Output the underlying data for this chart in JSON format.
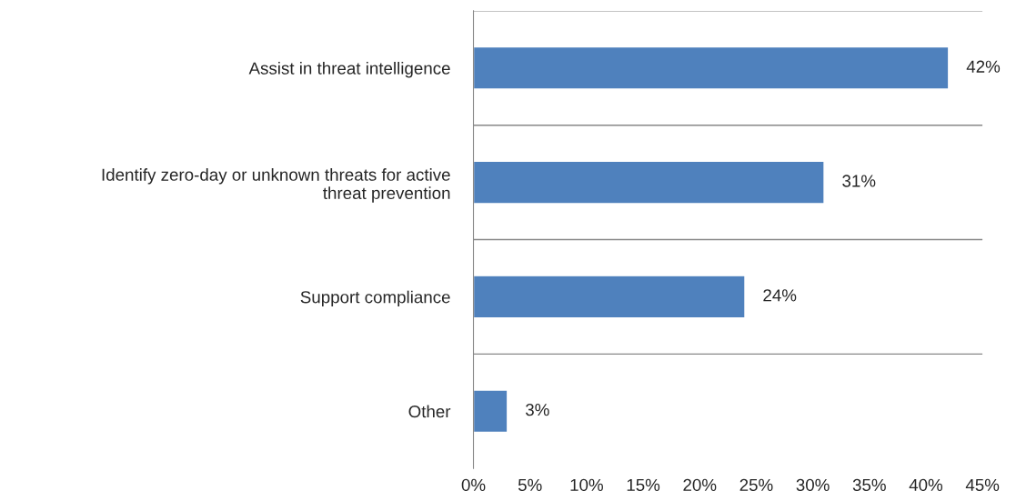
{
  "chart_data": {
    "type": "bar",
    "orientation": "horizontal",
    "categories": [
      "Assist in threat intelligence",
      "Identify zero-day or unknown threats for active\nthreat prevention",
      "Support compliance",
      "Other"
    ],
    "values": [
      42,
      31,
      24,
      3
    ],
    "value_labels": [
      "42%",
      "31%",
      "24%",
      "3%"
    ],
    "color": "#4f81bd",
    "xlim": [
      0,
      45
    ],
    "xticks": [
      {
        "value": 0,
        "label": "0%"
      },
      {
        "value": 5,
        "label": "5%"
      },
      {
        "value": 10,
        "label": "10%"
      },
      {
        "value": 15,
        "label": "15%"
      },
      {
        "value": 20,
        "label": "20%"
      },
      {
        "value": 25,
        "label": "25%"
      },
      {
        "value": 30,
        "label": "30%"
      },
      {
        "value": 35,
        "label": "35%"
      },
      {
        "value": 40,
        "label": "40%"
      },
      {
        "value": 45,
        "label": "45%"
      }
    ],
    "grid": "y",
    "legend": false
  }
}
